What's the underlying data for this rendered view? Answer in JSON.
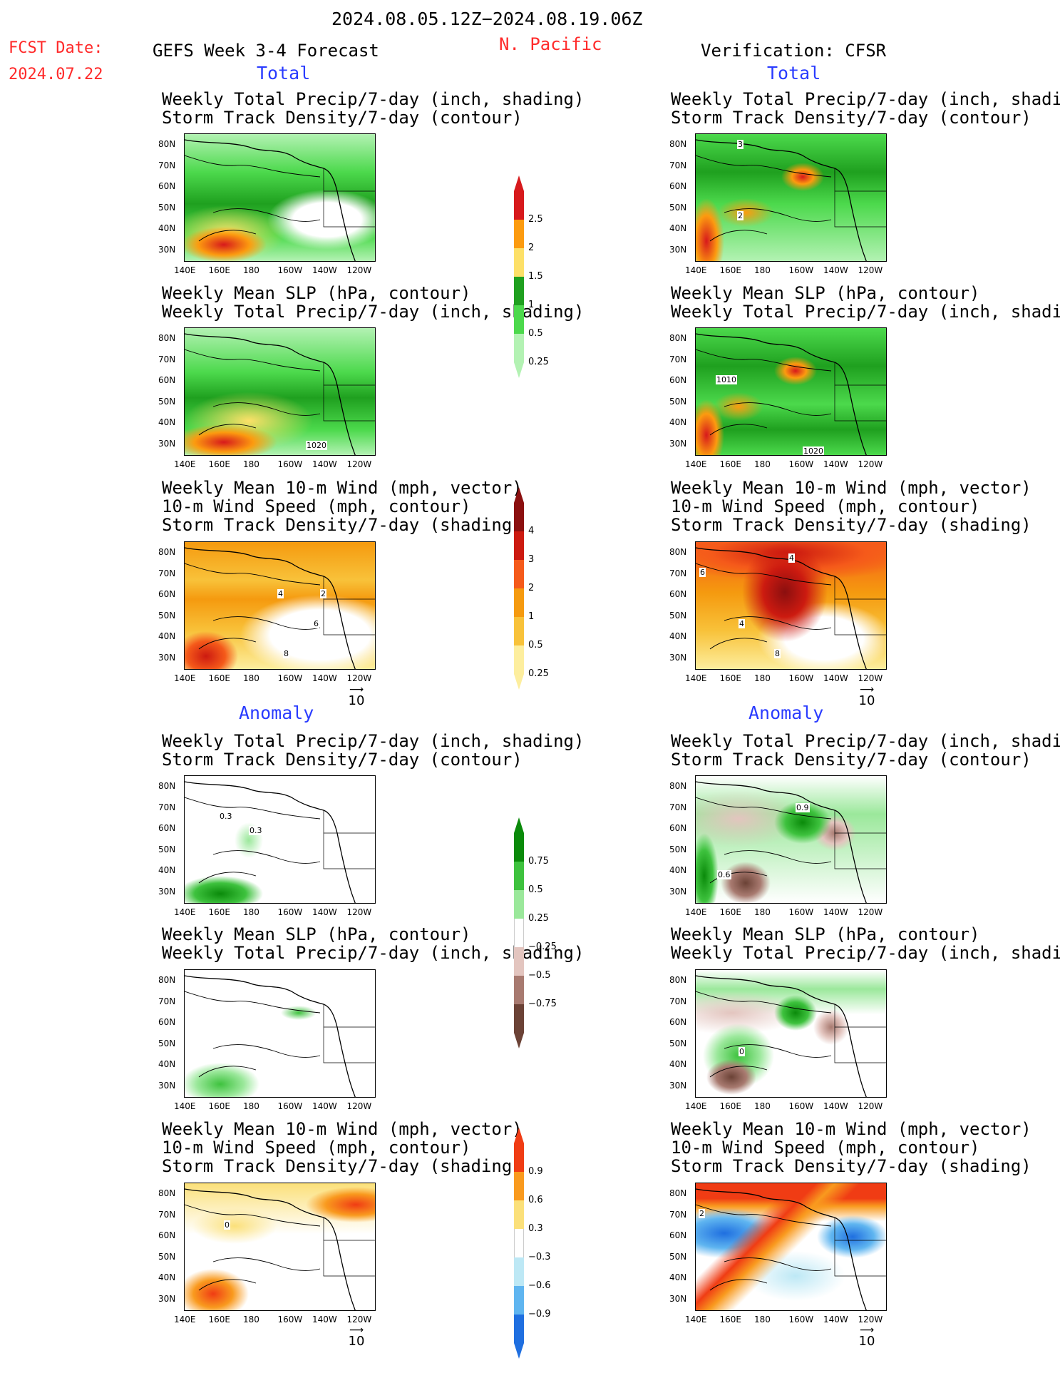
{
  "header": {
    "date_range": "2024.08.05.12Z−2024.08.19.06Z",
    "fcst_label": "FCST Date:",
    "fcst_date": "2024.07.22",
    "forecast_title": "GEFS Week 3-4 Forecast",
    "region": "N. Pacific",
    "verification": "Verification: CFSR"
  },
  "sections": {
    "total_left": "Total",
    "total_right": "Total",
    "anomaly_left": "Anomaly",
    "anomaly_right": "Anomaly"
  },
  "panel_titles": {
    "precip_storm": [
      "Weekly Total Precip/7-day (inch, shading)",
      "Storm Track Density/7-day (contour)"
    ],
    "slp_precip": [
      "Weekly Mean SLP (hPa, contour)",
      "Weekly Total Precip/7-day (inch, shading)"
    ],
    "wind_storm": [
      "Weekly Mean 10-m Wind (mph, vector)",
      "10-m Wind Speed (mph, contour)",
      "Storm Track Density/7-day (shading)"
    ]
  },
  "axes": {
    "lat_labels": [
      "80N",
      "70N",
      "60N",
      "50N",
      "40N",
      "30N"
    ],
    "lon_labels": [
      "140E",
      "160E",
      "180",
      "160W",
      "140W",
      "120W"
    ]
  },
  "vector_ref": "10",
  "contour_labels": {
    "p1_right": [
      "3",
      "2"
    ],
    "p2_left": [
      "1020"
    ],
    "p2_right": [
      "1010",
      "1020"
    ],
    "p3_left": [
      "4",
      "2",
      "6",
      "8"
    ],
    "p3_right": [
      "4",
      "6",
      "4",
      "8"
    ],
    "p4_left": [
      "0.3",
      "0.3"
    ],
    "p4_right": [
      "0.9",
      "0.6"
    ],
    "p5_right": [
      "0"
    ],
    "p6_left": [
      "0"
    ],
    "p6_right": [
      "2"
    ]
  },
  "colorbars": {
    "precip_total": {
      "ticks": [
        "2.5",
        "2",
        "1.5",
        "1",
        "0.5",
        "0.25"
      ],
      "colors": [
        "#d7191c",
        "#fc9b0f",
        "#fde068",
        "#1fa01f",
        "#4cd94c",
        "#b3f2b3"
      ]
    },
    "storm_total": {
      "ticks": [
        "4",
        "3",
        "2",
        "1",
        "0.5",
        "0.25"
      ],
      "colors": [
        "#8b0f0f",
        "#cc1a10",
        "#f55a1a",
        "#f59a0f",
        "#f8c23a",
        "#fdee9e"
      ]
    },
    "precip_anom": {
      "ticks": [
        "0.75",
        "0.5",
        "0.25",
        "−0.25",
        "−0.5",
        "−0.75"
      ],
      "colors": [
        "#0a8a0a",
        "#3ec23e",
        "#9be89b",
        "#ffffff",
        "#e3c5bf",
        "#a87a70",
        "#6b4236"
      ]
    },
    "storm_anom": {
      "ticks": [
        "0.9",
        "0.6",
        "0.3",
        "−0.3",
        "−0.6",
        "−0.9"
      ],
      "colors": [
        "#f03c14",
        "#f99a1e",
        "#fbe07a",
        "#ffffff",
        "#bde8f5",
        "#5fb5f0",
        "#1f6fe0"
      ]
    }
  }
}
